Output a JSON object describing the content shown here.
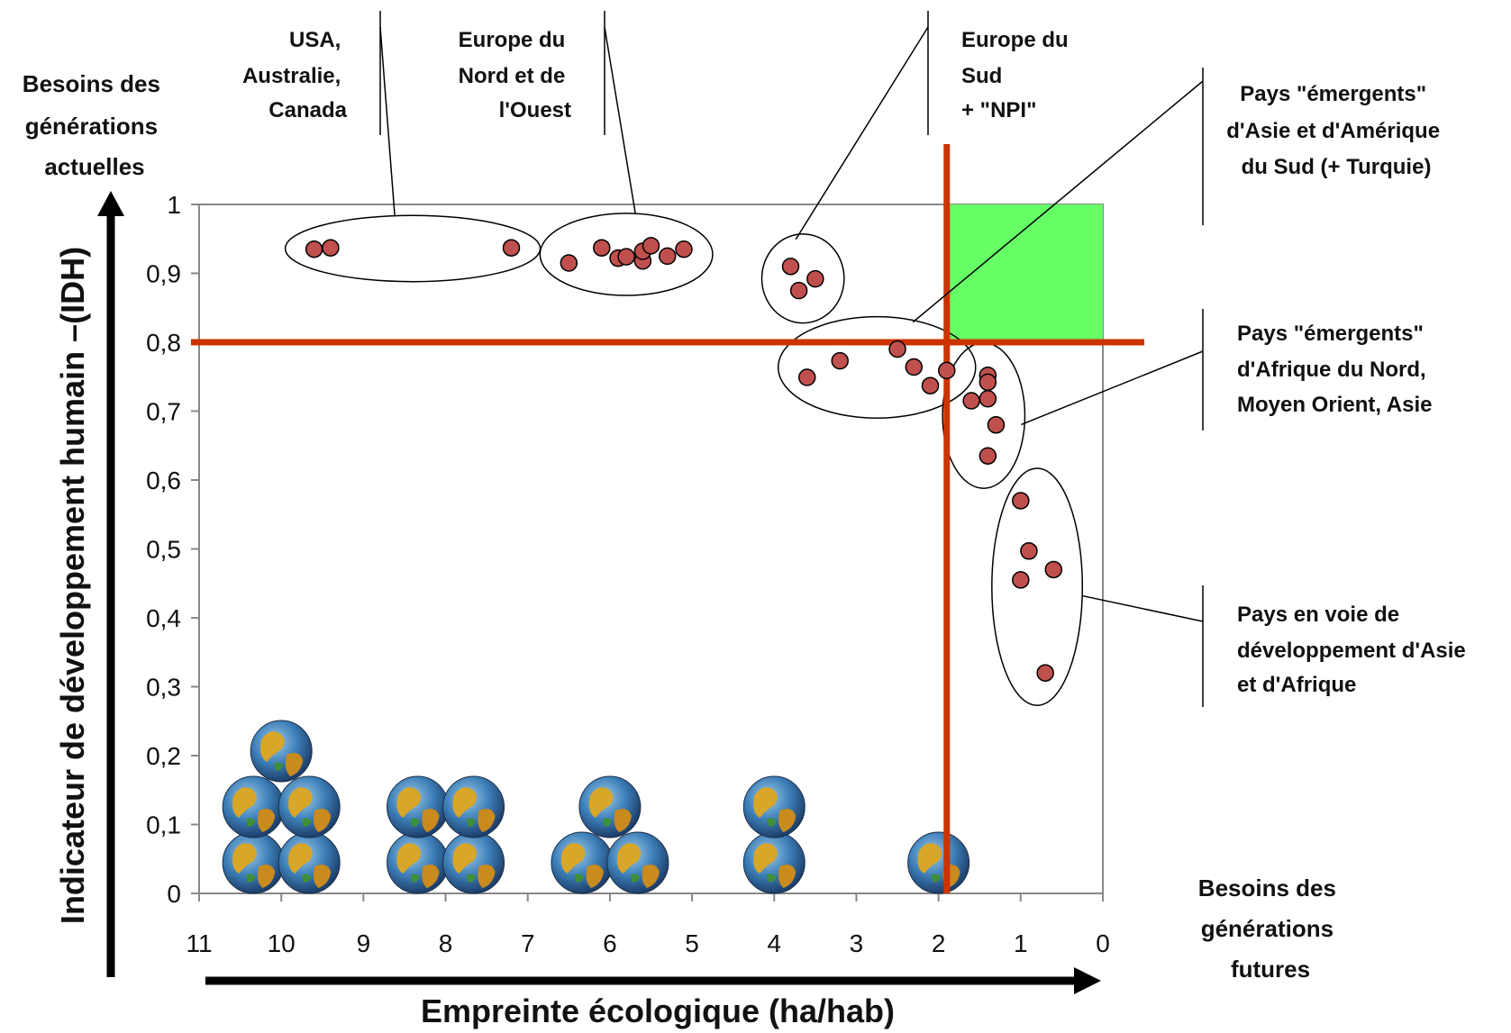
{
  "chart_data": {
    "type": "scatter",
    "title": "",
    "xlabel": "Empreinte écologique (ha/hab)",
    "ylabel": "Indicateur de développement humain –(IDH)",
    "xlim": [
      11,
      0
    ],
    "x_reversed": true,
    "ylim": [
      0,
      1
    ],
    "x_ticks": [
      "11",
      "10",
      "9",
      "8",
      "7",
      "6",
      "5",
      "4",
      "3",
      "2",
      "1",
      "0"
    ],
    "y_ticks": [
      "0",
      "0,1",
      "0,2",
      "0,3",
      "0,4",
      "0,5",
      "0,6",
      "0,7",
      "0,8",
      "0,9",
      "1"
    ],
    "grid": false,
    "thresholds": {
      "x": 1.9,
      "y": 0.8
    },
    "target_zone": {
      "x": [
        1.9,
        0
      ],
      "y": [
        0.8,
        1
      ],
      "color": "#66ff66"
    },
    "axis_labels": {
      "y_top": [
        "Besoins des",
        "générations",
        "actuelles"
      ],
      "x_right": [
        "Besoins des",
        "générations",
        "futures"
      ]
    },
    "groups": [
      {
        "name": [
          "USA,",
          "Australie,",
          "Canada"
        ],
        "points": [
          [
            9.6,
            0.935
          ],
          [
            9.4,
            0.937
          ],
          [
            7.2,
            0.937
          ]
        ]
      },
      {
        "name": [
          "Europe du",
          "Nord et de",
          "l'Ouest"
        ],
        "points": [
          [
            6.5,
            0.915
          ],
          [
            6.1,
            0.937
          ],
          [
            5.9,
            0.922
          ],
          [
            5.8,
            0.924
          ],
          [
            5.6,
            0.918
          ],
          [
            5.6,
            0.932
          ],
          [
            5.5,
            0.94
          ],
          [
            5.3,
            0.925
          ],
          [
            5.1,
            0.935
          ]
        ]
      },
      {
        "name": [
          "Europe du",
          "Sud",
          "+ \"NPI\""
        ],
        "points": [
          [
            3.8,
            0.91
          ],
          [
            3.7,
            0.875
          ],
          [
            3.5,
            0.892
          ]
        ]
      },
      {
        "name": [
          "Pays \"émergents\"",
          "d'Asie et d'Amérique",
          "du Sud (+ Turquie)"
        ],
        "points": [
          [
            3.6,
            0.749
          ],
          [
            3.2,
            0.773
          ],
          [
            2.5,
            0.79
          ],
          [
            2.3,
            0.764
          ],
          [
            2.1,
            0.737
          ],
          [
            1.9,
            0.759
          ]
        ]
      },
      {
        "name": [
          "Pays \"émergents\"",
          "d'Afrique du Nord,",
          "Moyen Orient, Asie"
        ],
        "points": [
          [
            1.4,
            0.752
          ],
          [
            1.4,
            0.742
          ],
          [
            1.6,
            0.715
          ],
          [
            1.4,
            0.718
          ],
          [
            1.3,
            0.68
          ],
          [
            1.4,
            0.635
          ]
        ]
      },
      {
        "name": [
          "Pays en voie de",
          "développement d'Asie",
          "et d'Afrique"
        ],
        "points": [
          [
            1.0,
            0.57
          ],
          [
            0.9,
            0.497
          ],
          [
            1.0,
            0.455
          ],
          [
            0.6,
            0.47
          ],
          [
            0.7,
            0.32
          ]
        ]
      }
    ],
    "earth_stacks": [
      {
        "x": 10,
        "count": 5
      },
      {
        "x": 8,
        "count": 4
      },
      {
        "x": 6,
        "count": 3
      },
      {
        "x": 4,
        "count": 2
      },
      {
        "x": 2,
        "count": 1
      }
    ],
    "colors": {
      "points": "#c0504d",
      "threshold": "#cc3300",
      "zone": "#66ff66"
    }
  }
}
